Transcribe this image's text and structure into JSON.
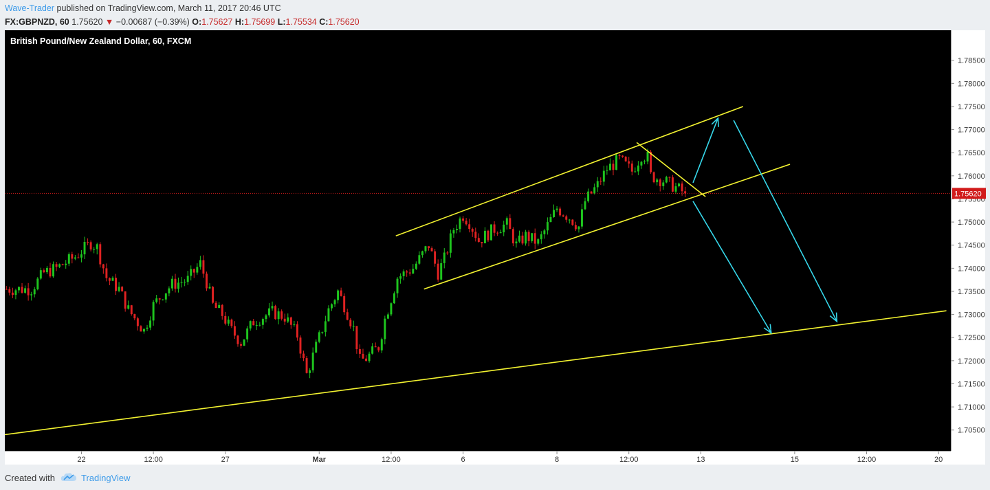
{
  "header": {
    "author": "Wave-Trader",
    "published_text": "published on TradingView.com, March 11, 2017 20:46 UTC",
    "symbol": "FX:GBPNZD, 60",
    "last": "1.75620",
    "change_arrow": "▼",
    "change": "−0.00687 (−0.39%)",
    "o_label": "O:",
    "o_value": "1.75627",
    "h_label": "H:",
    "h_value": "1.75699",
    "l_label": "L:",
    "l_value": "1.75534",
    "c_label": "C:",
    "c_value": "1.75620"
  },
  "footer": {
    "created_with": "Created with",
    "brand": "TradingView",
    "logo_icon": "tradingview-cloud-icon"
  },
  "colors": {
    "background": "#000000",
    "up": "#1ec51e",
    "down": "#e02222",
    "trendline": "#f2f230",
    "arrow": "#36d7ea",
    "price_line": "#d11b1b",
    "author": "#3d9be9"
  },
  "chart_data": {
    "type": "candlestick",
    "title": "British Pound/New Zealand Dollar, 60, FXCM",
    "ylim": [
      1.7005,
      1.7915
    ],
    "y_ticks": [
      "1.78500",
      "1.78000",
      "1.77500",
      "1.77000",
      "1.76500",
      "1.76000",
      "1.75500",
      "1.75000",
      "1.74500",
      "1.74000",
      "1.73500",
      "1.73000",
      "1.72500",
      "1.72000",
      "1.71500",
      "1.71000",
      "1.70500"
    ],
    "current_price": 1.7562,
    "current_price_label": "1.75620",
    "x_ticks": [
      {
        "label": "22",
        "bar": 24
      },
      {
        "label": "12:00",
        "bar": 47
      },
      {
        "label": "27",
        "bar": 70
      },
      {
        "label": "Mar",
        "bar": 100,
        "bold": true
      },
      {
        "label": "12:00",
        "bar": 123
      },
      {
        "label": "6",
        "bar": 146
      },
      {
        "label": "8",
        "bar": 176
      },
      {
        "label": "12:00",
        "bar": 199
      },
      {
        "label": "13",
        "bar": 222
      },
      {
        "label": "15",
        "bar": 252
      },
      {
        "label": "12:00",
        "bar": 275
      },
      {
        "label": "20",
        "bar": 298
      }
    ],
    "bar_count": 302,
    "price_path": [
      [
        0,
        1.7355
      ],
      [
        8,
        1.7355
      ],
      [
        12,
        1.739
      ],
      [
        16,
        1.74
      ],
      [
        22,
        1.7425
      ],
      [
        27,
        1.7455
      ],
      [
        29,
        1.7445
      ],
      [
        32,
        1.738
      ],
      [
        36,
        1.7355
      ],
      [
        39,
        1.731
      ],
      [
        44,
        1.7265
      ],
      [
        47,
        1.732
      ],
      [
        50,
        1.7345
      ],
      [
        53,
        1.7365
      ],
      [
        58,
        1.7375
      ],
      [
        62,
        1.741
      ],
      [
        64,
        1.737
      ],
      [
        66,
        1.732
      ],
      [
        69,
        1.73
      ],
      [
        72,
        1.7265
      ],
      [
        75,
        1.724
      ],
      [
        79,
        1.7285
      ],
      [
        85,
        1.7305
      ],
      [
        89,
        1.7295
      ],
      [
        93,
        1.7255
      ],
      [
        96,
        1.717
      ],
      [
        99,
        1.723
      ],
      [
        103,
        1.731
      ],
      [
        106,
        1.735
      ],
      [
        108,
        1.732
      ],
      [
        111,
        1.727
      ],
      [
        113,
        1.72
      ],
      [
        115,
        1.7205
      ],
      [
        119,
        1.723
      ],
      [
        121,
        1.729
      ],
      [
        125,
        1.738
      ],
      [
        130,
        1.74
      ],
      [
        135,
        1.745
      ],
      [
        138,
        1.739
      ],
      [
        140,
        1.742
      ],
      [
        143,
        1.7485
      ],
      [
        146,
        1.7515
      ],
      [
        148,
        1.75
      ],
      [
        151,
        1.746
      ],
      [
        154,
        1.7475
      ],
      [
        156,
        1.7485
      ],
      [
        160,
        1.7495
      ],
      [
        163,
        1.745
      ],
      [
        166,
        1.747
      ],
      [
        170,
        1.7455
      ],
      [
        174,
        1.7505
      ],
      [
        176,
        1.753
      ],
      [
        180,
        1.751
      ],
      [
        183,
        1.749
      ],
      [
        185,
        1.7545
      ],
      [
        189,
        1.758
      ],
      [
        192,
        1.7615
      ],
      [
        196,
        1.7635
      ],
      [
        200,
        1.761
      ],
      [
        203,
        1.7645
      ],
      [
        205,
        1.764
      ],
      [
        206,
        1.76
      ],
      [
        210,
        1.759
      ],
      [
        214,
        1.7575
      ],
      [
        217,
        1.7562
      ]
    ]
  }
}
